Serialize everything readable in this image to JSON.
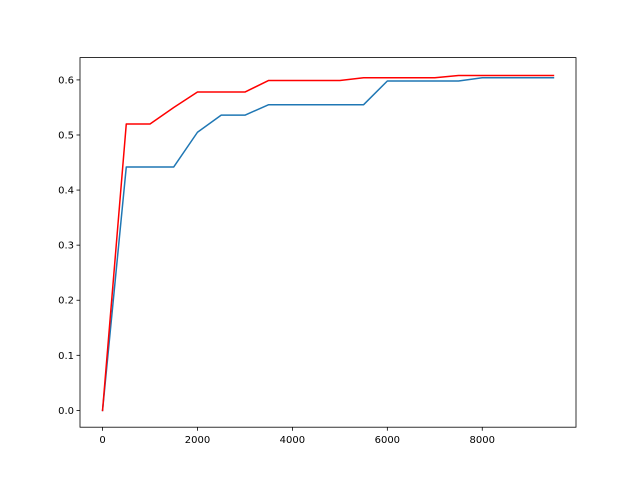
{
  "chart_data": {
    "type": "line",
    "title": "",
    "xlabel": "",
    "ylabel": "",
    "xlim": [
      -475,
      9975
    ],
    "ylim": [
      -0.0305,
      0.6405
    ],
    "xticks": [
      0,
      2000,
      4000,
      6000,
      8000
    ],
    "xtick_labels": [
      "0",
      "2000",
      "4000",
      "6000",
      "8000"
    ],
    "yticks": [
      0.0,
      0.1,
      0.2,
      0.3,
      0.4,
      0.5,
      0.6
    ],
    "ytick_labels": [
      "0.0",
      "0.1",
      "0.2",
      "0.3",
      "0.4",
      "0.5",
      "0.6"
    ],
    "grid": false,
    "legend": "none",
    "x": [
      0,
      500,
      1000,
      1500,
      2000,
      2500,
      3000,
      3500,
      4000,
      4500,
      5000,
      5500,
      6000,
      6500,
      7000,
      7500,
      8000,
      8500,
      9000,
      9500
    ],
    "series": [
      {
        "color": "#1f77b4",
        "values": [
          0.0,
          0.442,
          0.442,
          0.442,
          0.505,
          0.536,
          0.536,
          0.555,
          0.555,
          0.555,
          0.555,
          0.555,
          0.598,
          0.598,
          0.598,
          0.598,
          0.604,
          0.604,
          0.604,
          0.604
        ]
      },
      {
        "color": "#ff0000",
        "values": [
          0.0,
          0.52,
          0.52,
          0.55,
          0.578,
          0.578,
          0.578,
          0.599,
          0.599,
          0.599,
          0.599,
          0.604,
          0.604,
          0.604,
          0.604,
          0.608,
          0.608,
          0.608,
          0.608,
          0.608
        ]
      }
    ]
  }
}
